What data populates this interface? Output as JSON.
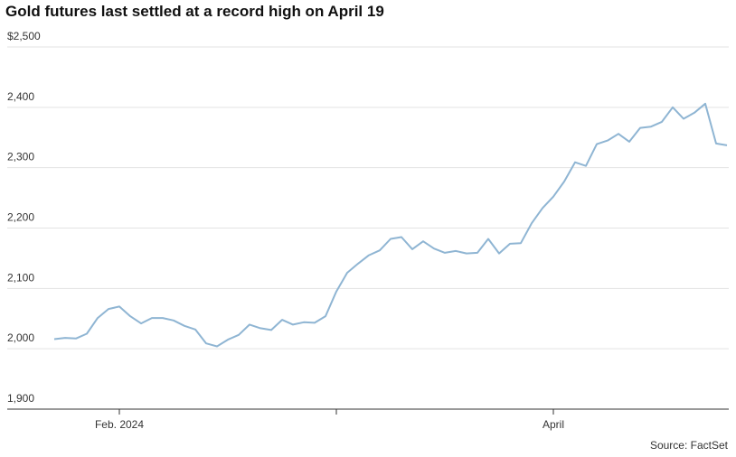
{
  "chart_data": {
    "type": "line",
    "title": "Gold futures last settled at a record high on April 19",
    "source": "Source: FactSet",
    "color": "#8fb5d3",
    "values": [
      2016,
      2018,
      2017,
      2025,
      2051,
      2066,
      2070,
      2054,
      2042,
      2051,
      2051,
      2047,
      2038,
      2032,
      2009,
      2004,
      2015,
      2023,
      2040,
      2034,
      2031,
      2048,
      2040,
      2044,
      2043,
      2054,
      2095,
      2126,
      2141,
      2155,
      2163,
      2182,
      2185,
      2165,
      2178,
      2166,
      2159,
      2162,
      2158,
      2159,
      2182,
      2158,
      2174,
      2175,
      2208,
      2233,
      2252,
      2277,
      2309,
      2303,
      2339,
      2345,
      2356,
      2343,
      2366,
      2368,
      2376,
      2400,
      2381,
      2391,
      2406,
      2340,
      2337
    ],
    "xticks": [
      {
        "value": 6,
        "label": "Feb. 2024"
      },
      {
        "value": 26,
        "label": null
      },
      {
        "value": 46,
        "label": "April"
      }
    ],
    "ylim": [
      1900,
      2500
    ],
    "yticks": [
      {
        "value": 1900,
        "label": "1,900"
      },
      {
        "value": 2000,
        "label": "2,000"
      },
      {
        "value": 2100,
        "label": "2,100"
      },
      {
        "value": 2200,
        "label": "2,200"
      },
      {
        "value": 2300,
        "label": "2,300"
      },
      {
        "value": 2400,
        "label": "2,400"
      },
      {
        "value": 2500,
        "label": "$2,500"
      }
    ],
    "grid": true
  }
}
